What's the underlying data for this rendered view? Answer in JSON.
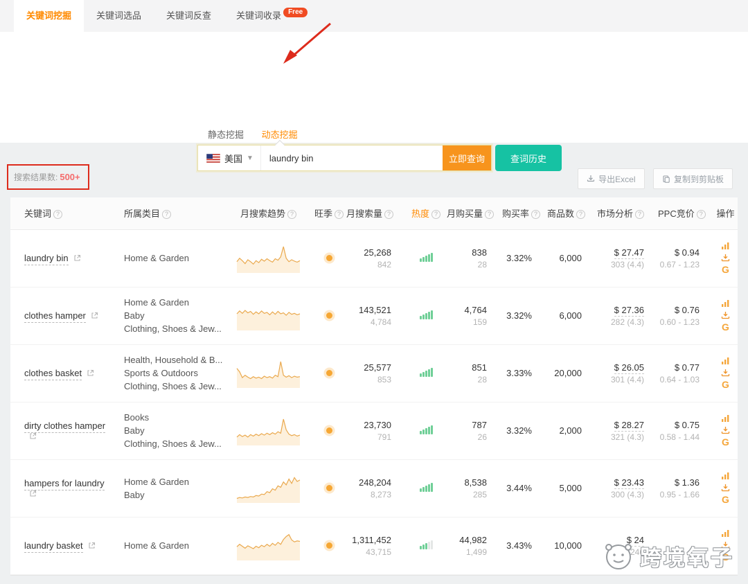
{
  "colors": {
    "accent_orange": "#ff8a00",
    "search_button_orange": "#f7941d",
    "history_button_teal": "#16c2a3",
    "annotation_red": "#dd2b1c",
    "free_badge_red": "#f04b22",
    "heat_bar_green": "#6fcf97",
    "sparkline_orange": "#eaa94e",
    "season_dot_orange": "#f6a734"
  },
  "tabs": [
    {
      "label": "关键词挖掘",
      "active": true,
      "badge": ""
    },
    {
      "label": "关键词选品",
      "active": false,
      "badge": ""
    },
    {
      "label": "关键词反查",
      "active": false,
      "badge": ""
    },
    {
      "label": "关键词收录",
      "active": false,
      "badge": "Free"
    }
  ],
  "subtabs": {
    "static": "静态挖掘",
    "dynamic": "动态挖掘"
  },
  "search": {
    "country": "美国",
    "query": "laundry bin",
    "submit_label": "立即查询",
    "history_label": "查词历史"
  },
  "results": {
    "label": "搜索结果数:",
    "count": "500+"
  },
  "toolbar": {
    "export_label": "导出Excel",
    "copy_label": "复制到剪贴板"
  },
  "table": {
    "columns": [
      {
        "label": "关键词",
        "info": true,
        "accent": false
      },
      {
        "label": "所属类目",
        "info": true,
        "accent": false
      },
      {
        "label": "月搜索趋势",
        "info": true,
        "accent": false
      },
      {
        "label": "旺季",
        "info": true,
        "accent": false
      },
      {
        "label": "月搜索量",
        "info": true,
        "accent": false
      },
      {
        "label": "热度",
        "info": true,
        "accent": true
      },
      {
        "label": "月购买量",
        "info": true,
        "accent": false
      },
      {
        "label": "购买率",
        "info": true,
        "accent": false
      },
      {
        "label": "商品数",
        "info": true,
        "accent": false
      },
      {
        "label": "市场分析",
        "info": true,
        "accent": false
      },
      {
        "label": "PPC竞价",
        "info": true,
        "accent": false
      },
      {
        "label": "操作",
        "info": false,
        "accent": false
      }
    ],
    "rows": [
      {
        "keyword": "laundry bin",
        "categories": [
          "Home & Garden"
        ],
        "spark": [
          38,
          52,
          42,
          30,
          46,
          38,
          28,
          42,
          34,
          48,
          40,
          50,
          42,
          36,
          50,
          44,
          58,
          100,
          52,
          38,
          46,
          40,
          36,
          42
        ],
        "season": true,
        "search_volume": "25,268",
        "search_sub": "842",
        "heat": 5,
        "purchase_volume": "838",
        "purchase_sub": "28",
        "purchase_rate": "3.32%",
        "products": "6,000",
        "market_price": "$ 27.47",
        "market_review": "303 (4.4)",
        "ppc_price": "$ 0.94",
        "ppc_range": "0.67 - 1.23"
      },
      {
        "keyword": "clothes hamper",
        "categories": [
          "Home & Garden",
          "Baby",
          "Clothing, Shoes & Jew..."
        ],
        "spark": [
          60,
          72,
          62,
          74,
          64,
          70,
          58,
          68,
          60,
          72,
          62,
          66,
          56,
          68,
          58,
          70,
          60,
          64,
          54,
          66,
          58,
          62,
          56,
          60
        ],
        "season": true,
        "search_volume": "143,521",
        "search_sub": "4,784",
        "heat": 5,
        "purchase_volume": "4,764",
        "purchase_sub": "159",
        "purchase_rate": "3.32%",
        "products": "6,000",
        "market_price": "$ 27.36",
        "market_review": "282 (4.3)",
        "ppc_price": "$ 0.76",
        "ppc_range": "0.60 - 1.23"
      },
      {
        "keyword": "clothes basket",
        "categories": [
          "Health, Household & B...",
          "Sports & Outdoors",
          "Clothing, Shoes & Jew..."
        ],
        "spark": [
          72,
          58,
          34,
          44,
          36,
          30,
          38,
          32,
          36,
          30,
          40,
          34,
          38,
          32,
          44,
          38,
          100,
          44,
          36,
          42,
          34,
          40,
          36,
          38
        ],
        "season": true,
        "search_volume": "25,577",
        "search_sub": "853",
        "heat": 5,
        "purchase_volume": "851",
        "purchase_sub": "28",
        "purchase_rate": "3.33%",
        "products": "20,000",
        "market_price": "$ 26.05",
        "market_review": "301 (4.4)",
        "ppc_price": "$ 0.77",
        "ppc_range": "0.64 - 1.03"
      },
      {
        "keyword": "dirty clothes hamper",
        "categories": [
          "Books",
          "Baby",
          "Clothing, Shoes & Jew..."
        ],
        "spark": [
          26,
          36,
          28,
          34,
          26,
          36,
          30,
          38,
          32,
          40,
          34,
          42,
          36,
          44,
          38,
          48,
          42,
          100,
          56,
          38,
          32,
          36,
          30,
          34
        ],
        "season": true,
        "search_volume": "23,730",
        "search_sub": "791",
        "heat": 5,
        "purchase_volume": "787",
        "purchase_sub": "26",
        "purchase_rate": "3.32%",
        "products": "2,000",
        "market_price": "$ 28.27",
        "market_review": "321 (4.3)",
        "ppc_price": "$ 0.75",
        "ppc_range": "0.58 - 1.44"
      },
      {
        "keyword": "hampers for laundry",
        "categories": [
          "Home & Garden",
          "Baby"
        ],
        "spark": [
          10,
          14,
          12,
          16,
          14,
          18,
          16,
          22,
          20,
          28,
          26,
          38,
          34,
          50,
          44,
          62,
          56,
          78,
          66,
          90,
          72,
          96,
          80,
          86
        ],
        "season": true,
        "search_volume": "248,204",
        "search_sub": "8,273",
        "heat": 5,
        "purchase_volume": "8,538",
        "purchase_sub": "285",
        "purchase_rate": "3.44%",
        "products": "5,000",
        "market_price": "$ 23.43",
        "market_review": "300 (4.3)",
        "ppc_price": "$ 1.36",
        "ppc_range": "0.95 - 1.66"
      },
      {
        "keyword": "laundry basket",
        "categories": [
          "Home & Garden"
        ],
        "spark": [
          48,
          58,
          50,
          42,
          52,
          46,
          40,
          50,
          44,
          54,
          48,
          58,
          50,
          62,
          54,
          66,
          58,
          78,
          90,
          98,
          76,
          68,
          72,
          70
        ],
        "season": true,
        "search_volume": "1,311,452",
        "search_sub": "43,715",
        "heat": 3,
        "purchase_volume": "44,982",
        "purchase_sub": "1,499",
        "purchase_rate": "3.43%",
        "products": "10,000",
        "market_price": "$ 24",
        "market_review": "246",
        "ppc_price": "",
        "ppc_range": ""
      }
    ]
  },
  "watermark": {
    "text": "跨境氧子"
  }
}
